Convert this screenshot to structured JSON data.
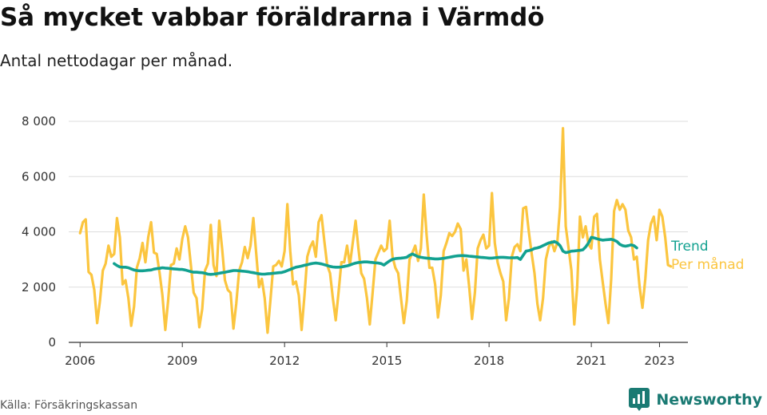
{
  "title": "Så mycket vabbar föräldrarna i Värmdö",
  "subtitle": "Antal nettodagar per månad.",
  "source": "Källa: Försäkringskassan",
  "brand": {
    "name": "Newsworthy",
    "icon": "newsworthy-logo-icon"
  },
  "colors": {
    "trend": "#12a190",
    "monthly": "#fbc53f",
    "grid": "#dddddd",
    "axis": "#333333",
    "brand": "#1a7a73"
  },
  "chart_data": {
    "type": "line",
    "x_unit": "month",
    "x_range": [
      "2005-09",
      "2023-11"
    ],
    "x_tick_labels": [
      "2006",
      "2009",
      "2012",
      "2015",
      "2018",
      "2021",
      "2023"
    ],
    "y_range": [
      0,
      8000
    ],
    "y_tick_values": [
      0,
      2000,
      4000,
      6000,
      8000
    ],
    "y_tick_labels": [
      "0",
      "2 000",
      "4 000",
      "6 000",
      "8 000"
    ],
    "grid": true,
    "legend": "end-of-line labels on the right",
    "series": [
      {
        "name": "Per månad",
        "color": "#fbc53f",
        "start": "2006-01",
        "values": [
          3950,
          4350,
          4450,
          2550,
          2450,
          1900,
          700,
          1500,
          2600,
          2850,
          3500,
          3100,
          3200,
          4500,
          3800,
          2100,
          2250,
          1600,
          600,
          1300,
          2700,
          3050,
          3600,
          2900,
          3800,
          4350,
          3250,
          3200,
          2500,
          1700,
          450,
          1500,
          2800,
          2850,
          3400,
          3000,
          3750,
          4200,
          3800,
          2800,
          1800,
          1600,
          550,
          1200,
          2600,
          2850,
          4250,
          2800,
          2400,
          4400,
          3400,
          2250,
          1900,
          1800,
          500,
          1400,
          2600,
          2900,
          3450,
          3050,
          3500,
          4500,
          3250,
          2000,
          2300,
          1600,
          350,
          1500,
          2750,
          2800,
          2950,
          2750,
          3300,
          5000,
          3300,
          2100,
          2200,
          1700,
          450,
          1700,
          3100,
          3450,
          3650,
          3100,
          4350,
          4600,
          3650,
          2800,
          2500,
          1600,
          800,
          1800,
          2900,
          2900,
          3500,
          2800,
          3600,
          4400,
          3400,
          2500,
          2300,
          1600,
          650,
          1800,
          3000,
          3250,
          3500,
          3300,
          3400,
          4400,
          3100,
          2700,
          2500,
          1600,
          700,
          1500,
          3000,
          3250,
          3500,
          2950,
          3400,
          5350,
          3900,
          2700,
          2700,
          2100,
          900,
          1700,
          3300,
          3600,
          3950,
          3850,
          4000,
          4300,
          4100,
          2600,
          3000,
          2000,
          850,
          1800,
          3400,
          3700,
          3900,
          3400,
          3500,
          5400,
          3600,
          2900,
          2500,
          2200,
          800,
          1600,
          3100,
          3450,
          3550,
          3300,
          4850,
          4900,
          4000,
          3200,
          2500,
          1400,
          800,
          1600,
          3000,
          3450,
          3650,
          3300,
          3600,
          4900,
          7750,
          4200,
          3400,
          2600,
          650,
          2000,
          4550,
          3800,
          4200,
          3550,
          3400,
          4550,
          4650,
          3000,
          2200,
          1400,
          700,
          2300,
          4750,
          5150,
          4800,
          5000,
          4800,
          4050,
          3800,
          3000,
          3100,
          2000,
          1250,
          2300,
          3700,
          4300,
          4550,
          3700,
          4800,
          4550,
          3800,
          2800,
          2750
        ]
      },
      {
        "name": "Trend",
        "color": "#12a190",
        "start": "2007-01",
        "values": [
          2850,
          2780,
          2730,
          2720,
          2720,
          2700,
          2660,
          2620,
          2600,
          2590,
          2590,
          2600,
          2610,
          2620,
          2650,
          2670,
          2680,
          2700,
          2690,
          2680,
          2670,
          2660,
          2650,
          2640,
          2640,
          2620,
          2590,
          2560,
          2540,
          2540,
          2530,
          2520,
          2500,
          2470,
          2460,
          2470,
          2480,
          2500,
          2520,
          2540,
          2560,
          2580,
          2600,
          2600,
          2590,
          2580,
          2570,
          2560,
          2540,
          2520,
          2500,
          2480,
          2470,
          2470,
          2480,
          2490,
          2500,
          2510,
          2520,
          2530,
          2560,
          2600,
          2640,
          2680,
          2720,
          2740,
          2760,
          2790,
          2810,
          2840,
          2860,
          2870,
          2860,
          2840,
          2810,
          2780,
          2750,
          2730,
          2720,
          2720,
          2730,
          2750,
          2770,
          2800,
          2840,
          2870,
          2890,
          2900,
          2910,
          2910,
          2900,
          2890,
          2880,
          2870,
          2850,
          2800,
          2880,
          2950,
          3010,
          3030,
          3040,
          3050,
          3060,
          3080,
          3150,
          3200,
          3150,
          3100,
          3080,
          3060,
          3050,
          3040,
          3030,
          3020,
          3020,
          3030,
          3040,
          3060,
          3080,
          3100,
          3120,
          3130,
          3140,
          3140,
          3130,
          3120,
          3110,
          3100,
          3090,
          3080,
          3070,
          3060,
          3050,
          3050,
          3060,
          3070,
          3080,
          3080,
          3070,
          3060,
          3060,
          3060,
          3070,
          3000,
          3150,
          3300,
          3320,
          3350,
          3400,
          3420,
          3450,
          3500,
          3550,
          3600,
          3620,
          3650,
          3600,
          3500,
          3300,
          3250,
          3270,
          3300,
          3310,
          3320,
          3330,
          3350,
          3450,
          3600,
          3800,
          3780,
          3750,
          3720,
          3700,
          3710,
          3720,
          3730,
          3700,
          3650,
          3550,
          3500,
          3480,
          3500,
          3530,
          3500,
          3420
        ]
      }
    ]
  }
}
